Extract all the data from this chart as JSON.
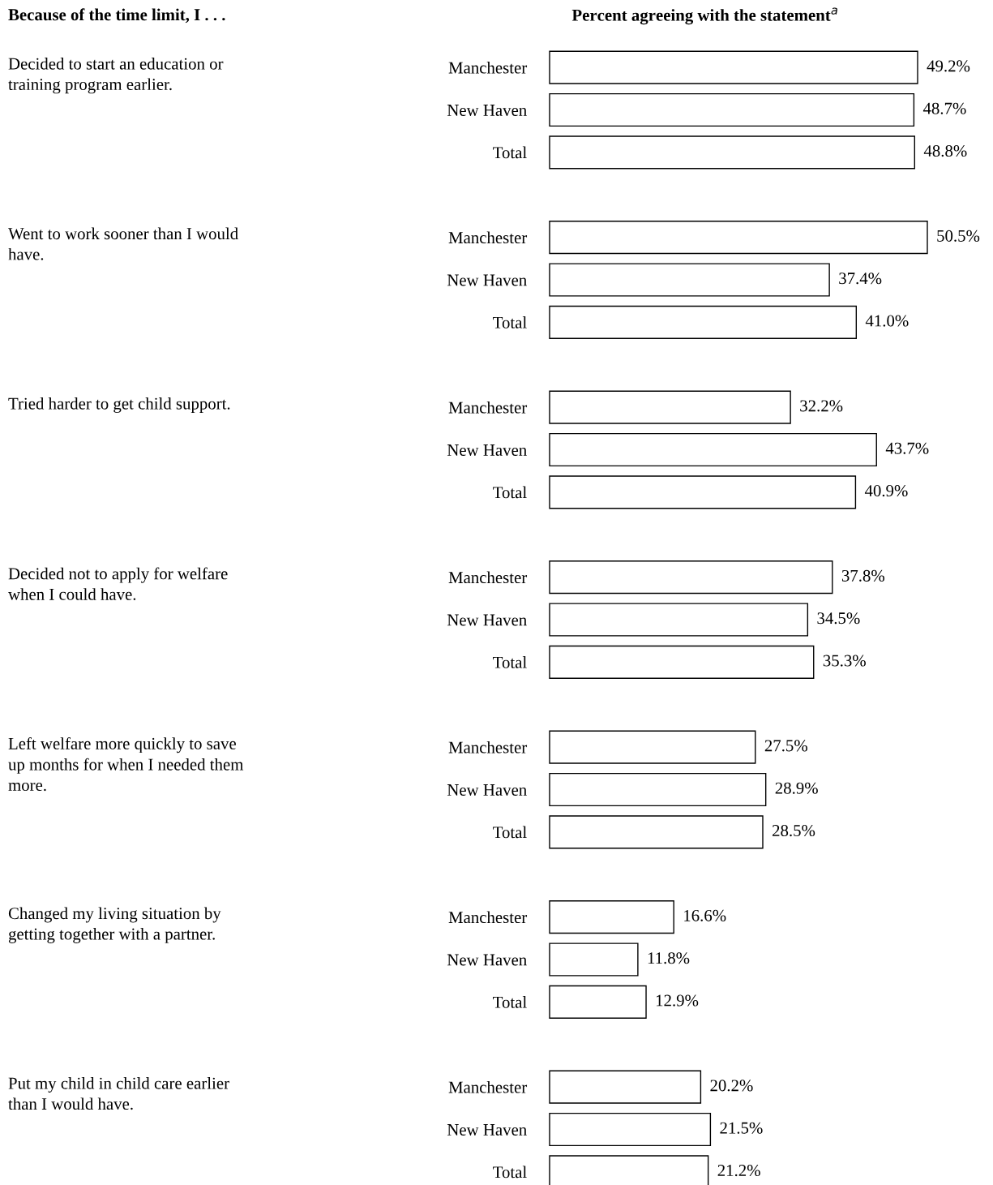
{
  "chart_data": [
    {
      "type": "bar",
      "orientation": "horizontal",
      "annotations": [
        "Decided to start an education or\ntraining program earlier.",
        "Because of the time limit, I . . .",
        "Percent agreeing with the statement$^{a}$"
      ],
      "categories": [
        "Manchester",
        "New Haven",
        "Total"
      ],
      "values": [
        49.2,
        48.7,
        48.8
      ],
      "value_labels": [
        "49.2%",
        "48.7%",
        "48.8%"
      ],
      "color": "#ffffff",
      "tick_labels": "y",
      "grid": false,
      "legend": false
    },
    {
      "type": "bar",
      "orientation": "horizontal",
      "annotations": [
        "Went to work sooner than I would\nhave."
      ],
      "categories": [
        "Manchester",
        "New Haven",
        "Total"
      ],
      "values": [
        50.5,
        37.4,
        41.0
      ],
      "value_labels": [
        "50.5%",
        "37.4%",
        "41.0%"
      ],
      "color": "#ffffff",
      "tick_labels": "y",
      "grid": false,
      "legend": false
    },
    {
      "type": "bar",
      "orientation": "horizontal",
      "annotations": [
        "Tried harder to get child support."
      ],
      "categories": [
        "Manchester",
        "New Haven",
        "Total"
      ],
      "values": [
        32.2,
        43.7,
        40.9
      ],
      "value_labels": [
        "32.2%",
        "43.7%",
        "40.9%"
      ],
      "color": "#ffffff",
      "tick_labels": "y",
      "grid": false,
      "legend": false
    },
    {
      "type": "bar",
      "orientation": "horizontal",
      "annotations": [
        "Decided not to apply for welfare\nwhen I could have."
      ],
      "categories": [
        "Manchester",
        "New Haven",
        "Total"
      ],
      "values": [
        37.8,
        34.5,
        35.3
      ],
      "value_labels": [
        "37.8%",
        "34.5%",
        "35.3%"
      ],
      "color": "#ffffff",
      "tick_labels": "y",
      "grid": false,
      "legend": false
    },
    {
      "type": "bar",
      "orientation": "horizontal",
      "annotations": [
        "Left welfare more quickly to save\nup months for when I needed them\nmore."
      ],
      "categories": [
        "Manchester",
        "New Haven",
        "Total"
      ],
      "values": [
        27.5,
        28.9,
        28.5
      ],
      "value_labels": [
        "27.5%",
        "28.9%",
        "28.5%"
      ],
      "color": "#ffffff",
      "tick_labels": "y",
      "grid": false,
      "legend": false
    },
    {
      "type": "bar",
      "orientation": "horizontal",
      "annotations": [
        "Changed my living situation by\ngetting together with a partner."
      ],
      "categories": [
        "Manchester",
        "New Haven",
        "Total"
      ],
      "values": [
        16.6,
        11.8,
        12.9
      ],
      "value_labels": [
        "16.6%",
        "11.8%",
        "12.9%"
      ],
      "color": "#ffffff",
      "tick_labels": "y",
      "grid": false,
      "legend": false
    },
    {
      "type": "bar",
      "orientation": "horizontal",
      "annotations": [
        "Put my child in child care earlier\nthan I would have."
      ],
      "categories": [
        "Manchester",
        "New Haven",
        "Total"
      ],
      "values": [
        20.2,
        21.5,
        21.2
      ],
      "value_labels": [
        "20.2%",
        "21.5%",
        "21.2%"
      ],
      "color": "#ffffff",
      "tick_labels": "y",
      "grid": false,
      "legend": false
    }
  ]
}
